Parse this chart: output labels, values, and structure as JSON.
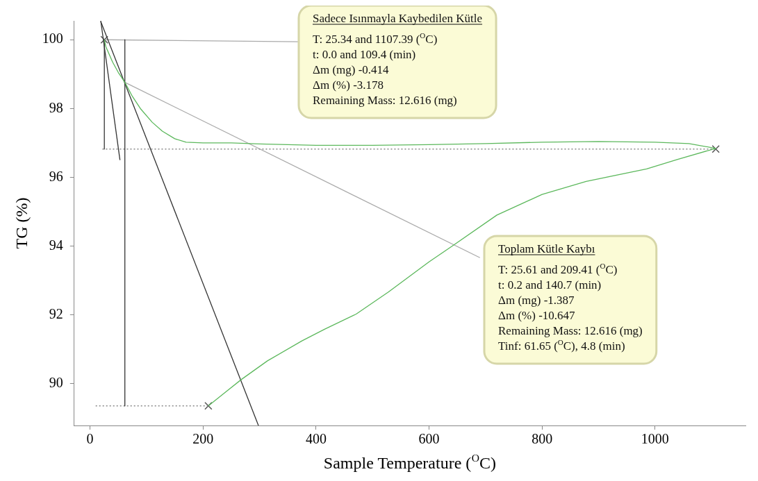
{
  "chart_data": {
    "type": "line",
    "xlabel": "Sample Temperature ($^{O}$C)",
    "ylabel": "TG (%)",
    "xlim": [
      -28,
      1160
    ],
    "ylim": [
      88.78,
      100.55
    ],
    "xticks": [
      0,
      200,
      400,
      600,
      800,
      1000
    ],
    "yticks": [
      90,
      92,
      94,
      96,
      98,
      100
    ],
    "grid": false,
    "legend": false,
    "marker": "none",
    "line_style": "solid",
    "series": [
      {
        "color": "#5cb85c",
        "x": [
          25.34,
          28,
          40,
          50,
          61.65,
          75,
          90,
          110,
          128,
          150,
          170,
          200,
          250,
          300,
          400,
          500,
          600,
          700,
          800,
          900,
          1000,
          1060,
          1107.39,
          1040,
          985,
          878,
          800,
          720,
          641,
          600,
          528,
          471,
          415,
          375,
          314,
          268,
          242,
          209.41
        ],
        "values": [
          100,
          99.8,
          99.35,
          99.05,
          98.76,
          98.35,
          97.98,
          97.6,
          97.34,
          97.12,
          97.02,
          97.0,
          97.0,
          96.97,
          96.93,
          96.93,
          96.95,
          96.98,
          97.02,
          97.04,
          97.02,
          96.98,
          96.84,
          96.52,
          96.24,
          95.88,
          95.5,
          94.9,
          94.0,
          93.54,
          92.66,
          92.02,
          91.58,
          91.24,
          90.66,
          90.12,
          89.78,
          89.35
        ]
      },
      {
        "type": "line",
        "color": "#333333",
        "x": [
          19,
          53
        ],
        "values": [
          100.55,
          96.5
        ]
      },
      {
        "type": "line",
        "color": "#333333",
        "x": [
          19,
          298
        ],
        "values": [
          100.53,
          88.78
        ]
      },
      {
        "type": "line",
        "color": "#333333",
        "x": [
          25.34,
          25.34
        ],
        "values": [
          100,
          96.82
        ]
      },
      {
        "type": "line",
        "color": "#333333",
        "x": [
          61.65,
          61.65
        ],
        "values": [
          100,
          89.35
        ]
      },
      {
        "type": "line",
        "color": "#888888",
        "line_style": "dotted",
        "x": [
          22,
          1107.39
        ],
        "values": [
          96.82,
          96.82
        ]
      },
      {
        "type": "line",
        "color": "#aaaaaa",
        "x": [
          25.34,
          368
        ],
        "values": [
          100,
          99.94
        ]
      },
      {
        "type": "line",
        "color": "#aaaaaa",
        "x": [
          61.65,
          690
        ],
        "values": [
          98.76,
          93.66
        ]
      },
      {
        "type": "line",
        "color": "#888888",
        "line_style": "dotted",
        "x": [
          10,
          209.41
        ],
        "values": [
          89.35,
          89.35
        ]
      },
      {
        "type": "scatter",
        "color": "#555555",
        "marker": "cross",
        "x": [
          25.34,
          209.41,
          1107.39
        ],
        "values": [
          100,
          89.35,
          96.82
        ]
      }
    ],
    "annotations": [
      "Sadece Isınmayla Kaybedilen Kütle",
      "T: 25.34 and 1107.39 ($^{O}$C)",
      "t: 0.0 and 109.4 (min)",
      "Δm (mg) -0.414",
      "Δm (%) -3.178",
      "Remaining Mass: 12.616 (mg)",
      "Toplam Kütle Kaybı",
      "T: 25.61 and 209.41 ($^{O}$C)",
      "t: 0.2 and 140.7 (min)",
      "Δm (mg) -1.387",
      "Δm (%) -10.647",
      "Remaining Mass: 12.616 (mg)",
      "Tinf: 61.65 ($^{O}$C), 4.8 (min)"
    ]
  }
}
